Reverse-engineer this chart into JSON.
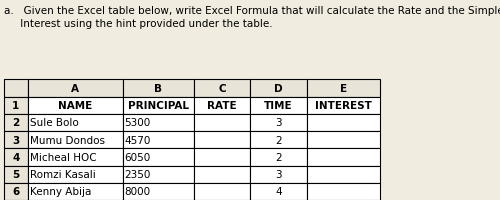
{
  "title_text": "a.   Given the Excel table below, write Excel Formula that will calculate the Rate and the Simple\n     Interest using the hint provided under the table.",
  "col_headers": [
    "A",
    "B",
    "C",
    "D",
    "E"
  ],
  "row_headers": [
    "1",
    "2",
    "3",
    "4",
    "5",
    "6"
  ],
  "header_row": [
    "NAME",
    "PRINCIPAL",
    "RATE",
    "TIME",
    "INTEREST"
  ],
  "data_rows": [
    [
      "Sule Bolo",
      "5300",
      "",
      "3",
      ""
    ],
    [
      "Mumu Dondos",
      "4570",
      "",
      "2",
      ""
    ],
    [
      "Micheal HOC",
      "6050",
      "",
      "2",
      ""
    ],
    [
      "Romzi Kasali",
      "2350",
      "",
      "3",
      ""
    ],
    [
      "Kenny Abija",
      "8000",
      "",
      "4",
      ""
    ]
  ],
  "bg_color": "#f0ece0",
  "header_col_color": "#ffffff",
  "cell_color": "#ffffff",
  "title_fontsize": 7.5,
  "table_fontsize": 7.5,
  "bold_headers": true
}
